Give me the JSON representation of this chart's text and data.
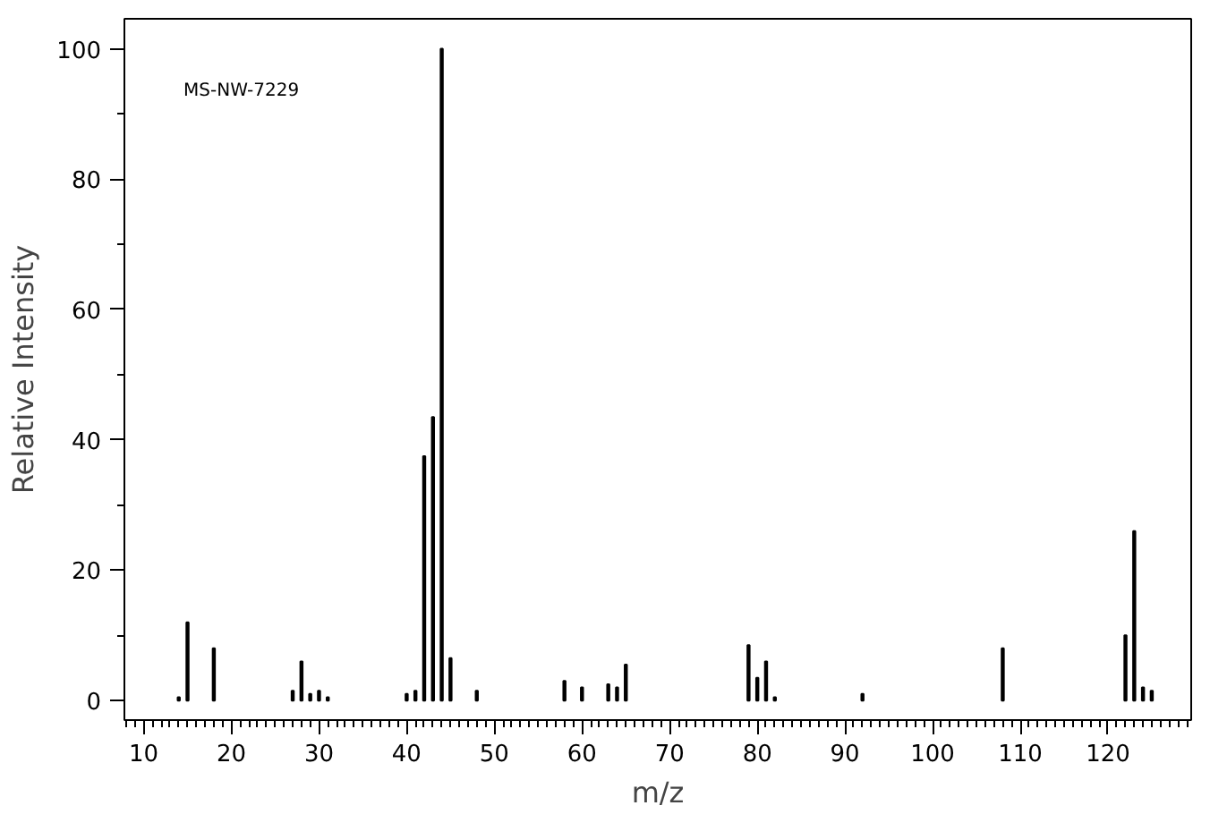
{
  "chart_data": {
    "type": "bar",
    "xlabel": "m/z",
    "ylabel": "Relative Intensity",
    "annotations": [
      "MS-NW-7229"
    ],
    "x": [
      14,
      15,
      18,
      27,
      28,
      29,
      30,
      31,
      40,
      41,
      42,
      43,
      44,
      45,
      48,
      58,
      60,
      63,
      64,
      65,
      79,
      80,
      81,
      82,
      92,
      108,
      122,
      123,
      124,
      125
    ],
    "values": [
      0.5,
      12,
      8,
      1.5,
      6,
      1,
      1.5,
      0.5,
      1,
      1.5,
      37.5,
      43.5,
      100,
      6.5,
      1.5,
      3,
      2,
      2.5,
      2,
      5.5,
      8.5,
      3.5,
      6,
      0.5,
      1,
      8,
      10,
      26,
      2,
      1.5
    ],
    "color": "#000000",
    "xlim": [
      7.8,
      129.5
    ],
    "ylim": [
      -3,
      104.6
    ],
    "xticks": [
      10,
      20,
      30,
      40,
      50,
      60,
      70,
      80,
      90,
      100,
      110,
      120
    ],
    "yticks": [
      0,
      20,
      40,
      60,
      80,
      100
    ],
    "grid": false
  }
}
